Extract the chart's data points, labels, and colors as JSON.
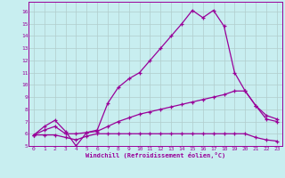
{
  "xlabel": "Windchill (Refroidissement éolien,°C)",
  "bg_color": "#c8eef0",
  "line_color": "#990099",
  "grid_color": "#b0cccc",
  "xlim": [
    -0.5,
    23.5
  ],
  "ylim": [
    5.0,
    16.8
  ],
  "xticks": [
    0,
    1,
    2,
    3,
    4,
    5,
    6,
    7,
    8,
    9,
    10,
    11,
    12,
    13,
    14,
    15,
    16,
    17,
    18,
    19,
    20,
    21,
    22,
    23
  ],
  "yticks": [
    5,
    6,
    7,
    8,
    9,
    10,
    11,
    12,
    13,
    14,
    15,
    16
  ],
  "line1_x": [
    0,
    1,
    2,
    3,
    4,
    5,
    6,
    7,
    8,
    9,
    10,
    11,
    12,
    13,
    14,
    15,
    16,
    17,
    18,
    19,
    20,
    21,
    22,
    23
  ],
  "line1_y": [
    5.9,
    6.6,
    7.1,
    6.2,
    5.0,
    6.1,
    6.3,
    8.5,
    9.8,
    10.5,
    11.0,
    12.0,
    13.0,
    14.0,
    15.0,
    16.1,
    15.5,
    16.1,
    14.8,
    11.0,
    9.5,
    8.3,
    7.2,
    7.0
  ],
  "line2_x": [
    0,
    1,
    2,
    3,
    4,
    5,
    6,
    7,
    8,
    9,
    10,
    11,
    12,
    13,
    14,
    15,
    16,
    17,
    18,
    19,
    20,
    21,
    22,
    23
  ],
  "line2_y": [
    5.9,
    6.3,
    6.6,
    6.0,
    6.0,
    6.1,
    6.2,
    6.6,
    7.0,
    7.3,
    7.6,
    7.8,
    8.0,
    8.2,
    8.4,
    8.6,
    8.8,
    9.0,
    9.2,
    9.5,
    9.5,
    8.3,
    7.5,
    7.2
  ],
  "line3_x": [
    0,
    1,
    2,
    3,
    4,
    5,
    6,
    7,
    8,
    9,
    10,
    11,
    12,
    13,
    14,
    15,
    16,
    17,
    18,
    19,
    20,
    21,
    22,
    23
  ],
  "line3_y": [
    5.9,
    5.9,
    5.9,
    5.7,
    5.5,
    5.8,
    6.0,
    6.0,
    6.0,
    6.0,
    6.0,
    6.0,
    6.0,
    6.0,
    6.0,
    6.0,
    6.0,
    6.0,
    6.0,
    6.0,
    6.0,
    5.7,
    5.5,
    5.4
  ]
}
